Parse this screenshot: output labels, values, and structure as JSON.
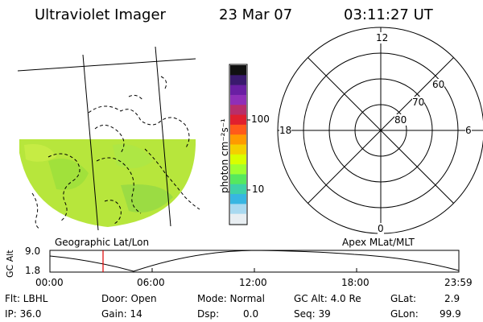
{
  "header": {
    "title": "Ultraviolet Imager",
    "date": "23 Mar 07",
    "time": "03:11:27 UT"
  },
  "colorbar": {
    "unit_label": "photon cm⁻²s⁻¹",
    "tick_labels": [
      "100",
      "10"
    ],
    "colors": [
      "#111111",
      "#3a1a6e",
      "#6a1fa3",
      "#8f2fb8",
      "#b82e6a",
      "#e0202e",
      "#ff5a1a",
      "#ff9a00",
      "#f4d000",
      "#d8ff00",
      "#9eff30",
      "#56e85e",
      "#3fd1a8",
      "#37b6e2",
      "#a9d9f0",
      "#e8eef2"
    ]
  },
  "left_map": {
    "caption": "Geographic Lat/Lon",
    "fill_color": "#b7e63c"
  },
  "polar_plot": {
    "caption": "Apex MLat/MLT",
    "mlt_labels": {
      "top": "12",
      "bottom": "0",
      "left": "18",
      "right": "6"
    },
    "lat_labels": [
      "60",
      "70",
      "80"
    ]
  },
  "timeline": {
    "ylabel": "GC Alt",
    "ytick_top": "9.0",
    "ytick_bottom": "1.8",
    "x_ticks": [
      "00:00",
      "06:00",
      "12:00",
      "18:00",
      "23:59"
    ],
    "current_marker_color": "#e00000"
  },
  "info": {
    "flt": "Flt: LBHL",
    "door": "Door: Open",
    "mode": "Mode: Normal",
    "gc_alt": "GC Alt: 4.0 Re",
    "glat_label": "GLat:",
    "glat_value": "2.9",
    "ip": "IP: 36.0",
    "gain": "Gain: 14",
    "dsp_label": "Dsp:",
    "dsp_value": "0.0",
    "seq": "Seq: 39",
    "glon_label": "GLon:",
    "glon_value": "99.9"
  }
}
